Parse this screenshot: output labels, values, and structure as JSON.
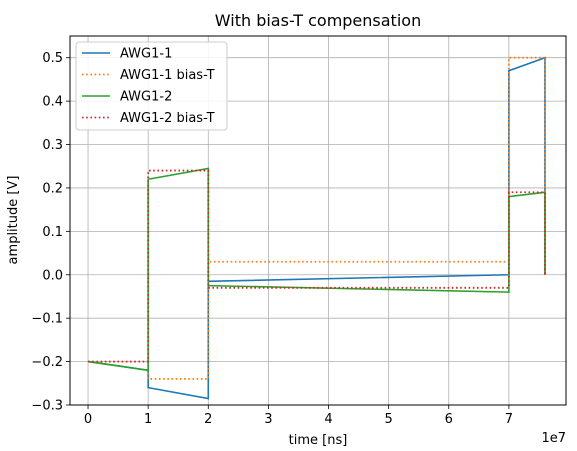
{
  "chart_data": {
    "type": "line",
    "title": "With bias-T compensation",
    "xlabel": "time [ns]",
    "ylabel": "amplitude [V]",
    "x_offset_label": "1e7",
    "xlim": [
      -0.3,
      7.95
    ],
    "ylim": [
      -0.3,
      0.55
    ],
    "x_ticks": [
      0,
      1,
      2,
      3,
      4,
      5,
      6,
      7
    ],
    "x_tick_labels": [
      "0",
      "1",
      "2",
      "3",
      "4",
      "5",
      "6",
      "7"
    ],
    "y_ticks": [
      -0.3,
      -0.2,
      -0.1,
      0.0,
      0.1,
      0.2,
      0.3,
      0.4,
      0.5
    ],
    "y_tick_labels": [
      "−0.3",
      "−0.2",
      "−0.1",
      "0.0",
      "0.1",
      "0.2",
      "0.3",
      "0.4",
      "0.5"
    ],
    "grid": true,
    "legend_position": "top-left",
    "x_units_note": "x values in units of 1e7 ns",
    "series": [
      {
        "name": "AWG1-1",
        "color": "#1f77b4",
        "style": "solid",
        "x": [
          0,
          1,
          1,
          2,
          2,
          7,
          7,
          7.6,
          7.6
        ],
        "y": [
          -0.2,
          -0.22,
          -0.26,
          -0.285,
          -0.015,
          0.0,
          0.47,
          0.5,
          0.0
        ]
      },
      {
        "name": "AWG1-1 bias-T",
        "color": "#ff7f0e",
        "style": "dotted",
        "x": [
          0,
          1,
          1,
          2,
          2,
          7,
          7,
          7.6,
          7.6
        ],
        "y": [
          -0.2,
          -0.2,
          -0.24,
          -0.24,
          0.03,
          0.03,
          0.5,
          0.5,
          0.0
        ]
      },
      {
        "name": "AWG1-2",
        "color": "#2ca02c",
        "style": "solid",
        "x": [
          0,
          1,
          1,
          2,
          2,
          7,
          7,
          7.6,
          7.6
        ],
        "y": [
          -0.2,
          -0.22,
          0.22,
          0.245,
          -0.025,
          -0.04,
          0.18,
          0.19,
          0.0
        ]
      },
      {
        "name": "AWG1-2 bias-T",
        "color": "#d62728",
        "style": "dotted",
        "x": [
          0,
          1,
          1,
          2,
          2,
          7,
          7,
          7.6,
          7.6
        ],
        "y": [
          -0.2,
          -0.2,
          0.24,
          0.24,
          -0.03,
          -0.03,
          0.19,
          0.19,
          0.0
        ]
      }
    ]
  }
}
